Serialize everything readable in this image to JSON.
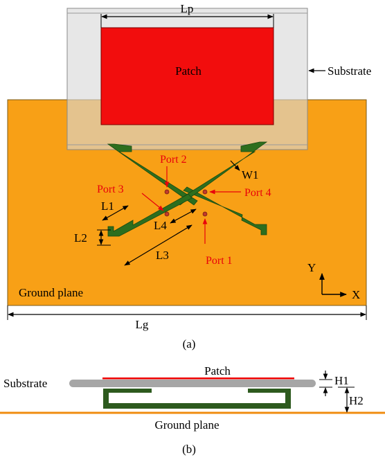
{
  "labels": {
    "lp": "Lp",
    "patch_top": "Patch",
    "substrate_top": "Substrate",
    "port2": "Port 2",
    "port3": "Port 3",
    "port4": "Port 4",
    "port1": "Port 1",
    "w1": "W1",
    "l1": "L1",
    "l2": "L2",
    "l3": "L3",
    "l4": "L4",
    "ground_plane_top": "Ground plane",
    "axis_y": "Y",
    "axis_x": "X",
    "lg": "Lg",
    "caption_a": "(a)",
    "substrate_side": "Substrate",
    "patch_side": "Patch",
    "h1": "H1",
    "h2": "H2",
    "ground_plane_side": "Ground plane",
    "caption_b": "(b)"
  },
  "colors": {
    "ground": "#f8a016",
    "patch": "#f20d0d",
    "substrate": "#d9d9d9",
    "feed": "#2d6e1e",
    "port_label": "#e8000b",
    "side_substrate": "#a6a6a6",
    "side_ground": "#f08c10",
    "side_patch": "#ee0000"
  }
}
